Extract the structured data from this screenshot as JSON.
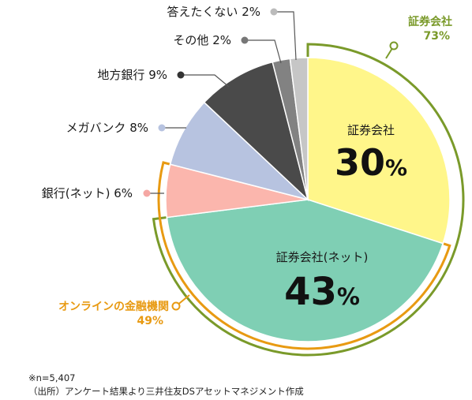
{
  "chart_data": {
    "type": "pie",
    "center_value_text_suffix": "%",
    "slices": [
      {
        "label": "証券会社",
        "value": 30,
        "color": "#fff68a",
        "inside": true
      },
      {
        "label": "証券会社(ネット)",
        "value": 43,
        "color": "#7fcfb4",
        "inside": true
      },
      {
        "label": "銀行(ネット)",
        "value": 6,
        "color": "#fbb6ad",
        "dot": "#f5a7a3",
        "text": "銀行(ネット) 6%"
      },
      {
        "label": "メガバンク",
        "value": 8,
        "color": "#b7c3e0",
        "dot": "#b7c3e0",
        "text": "メガバンク 8%"
      },
      {
        "label": "地方銀行",
        "value": 9,
        "color": "#4a4a4a",
        "dot": "#333333",
        "text": "地方銀行 9%"
      },
      {
        "label": "その他",
        "value": 2,
        "color": "#828282",
        "dot": "#777777",
        "text": "その他 2%"
      },
      {
        "label": "答えたくない",
        "value": 2,
        "color": "#c6c6c6",
        "dot": "#bbbbbb",
        "text": "答えたくない 2%"
      }
    ],
    "groups": [
      {
        "label": "証券会社",
        "value": "73%",
        "color": "#7a9a2a"
      },
      {
        "label": "オンラインの金融機関",
        "value": "49%",
        "color": "#e89a12"
      }
    ]
  },
  "notes": {
    "n": "※n=5,407",
    "source": "（出所）アンケート結果より三井住友DSアセットマネジメント作成"
  }
}
